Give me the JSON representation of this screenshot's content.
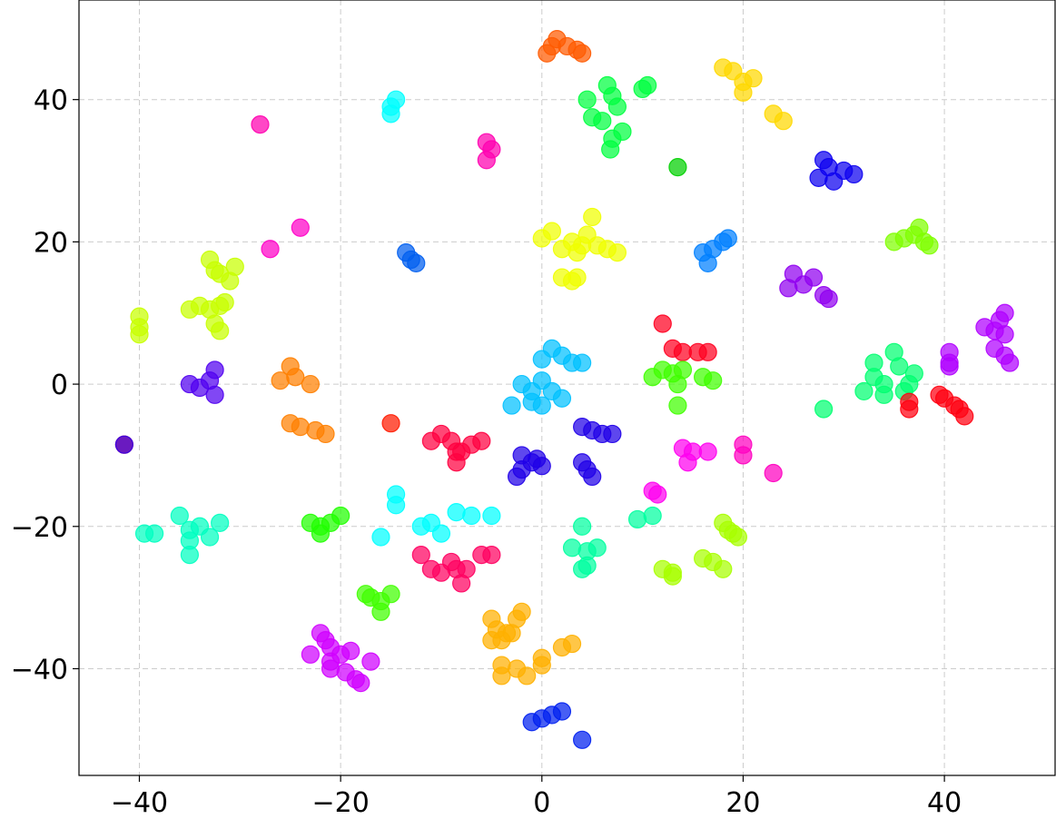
{
  "chart_data": {
    "type": "scatter",
    "title": "",
    "xlabel": "",
    "ylabel": "",
    "xlim": [
      -46,
      51
    ],
    "ylim": [
      -55,
      54
    ],
    "xticks": [
      -40,
      -20,
      0,
      20,
      40
    ],
    "yticks": [
      -40,
      -20,
      0,
      20,
      40
    ],
    "xtick_labels": [
      "−40",
      "−20",
      "0",
      "20",
      "40"
    ],
    "ytick_labels": [
      "−40",
      "−20",
      "0",
      "20",
      "40"
    ],
    "grid": true,
    "legend": "none",
    "clusters": [
      {
        "color": "#ff5a00",
        "points": [
          [
            0.5,
            46.5
          ],
          [
            1.5,
            48.5
          ],
          [
            2.5,
            47.5
          ],
          [
            3.5,
            47
          ],
          [
            4,
            46.5
          ],
          [
            1,
            47.5
          ]
        ]
      },
      {
        "color": "#ffd800",
        "points": [
          [
            18,
            44.5
          ],
          [
            19,
            44
          ],
          [
            20,
            42.5
          ],
          [
            21,
            43
          ],
          [
            20,
            41
          ],
          [
            23,
            38
          ],
          [
            24,
            37
          ]
        ]
      },
      {
        "color": "#00ff40",
        "points": [
          [
            4.5,
            40
          ],
          [
            6.5,
            42
          ],
          [
            7,
            40.5
          ],
          [
            7.5,
            39
          ],
          [
            10,
            41.5
          ],
          [
            10.5,
            42
          ],
          [
            5,
            37.5
          ],
          [
            6,
            37
          ],
          [
            7,
            34.5
          ],
          [
            8,
            35.5
          ],
          [
            6.8,
            33
          ]
        ]
      },
      {
        "color": "#00ffff",
        "points": [
          [
            -15,
            38
          ],
          [
            -14.5,
            40
          ],
          [
            -15,
            39
          ]
        ]
      },
      {
        "color": "#ff00b0",
        "points": [
          [
            -28,
            36.5
          ],
          [
            -5.5,
            34
          ],
          [
            -5,
            33
          ],
          [
            -5.5,
            31.5
          ]
        ]
      },
      {
        "color": "#00d000",
        "points": [
          [
            13.5,
            30.5
          ]
        ]
      },
      {
        "color": "#0c00f0",
        "points": [
          [
            27.5,
            29
          ],
          [
            28,
            31.5
          ],
          [
            28.5,
            30.5
          ],
          [
            29,
            28.5
          ],
          [
            30,
            30
          ],
          [
            31,
            29.5
          ]
        ]
      },
      {
        "color": "#ff00c8",
        "points": [
          [
            -27,
            19
          ],
          [
            -24,
            22
          ]
        ]
      },
      {
        "color": "#005ef0",
        "points": [
          [
            -13.5,
            18.5
          ],
          [
            -13,
            17.5
          ],
          [
            -12.5,
            17
          ]
        ]
      },
      {
        "color": "#f0ff00",
        "points": [
          [
            0,
            20.5
          ],
          [
            1,
            21.5
          ],
          [
            2,
            19
          ],
          [
            3,
            20
          ],
          [
            3.5,
            18.5
          ],
          [
            4,
            19.5
          ],
          [
            4.5,
            21
          ],
          [
            5,
            23.5
          ],
          [
            5.5,
            19.5
          ],
          [
            6.5,
            19
          ],
          [
            7.5,
            18.5
          ],
          [
            2,
            15
          ],
          [
            3,
            14.5
          ],
          [
            3.5,
            15
          ]
        ]
      },
      {
        "color": "#0080ff",
        "points": [
          [
            16,
            18.5
          ],
          [
            16.5,
            17
          ],
          [
            17,
            19
          ],
          [
            18,
            20
          ],
          [
            18.5,
            20.5
          ]
        ]
      },
      {
        "color": "#80ff00",
        "points": [
          [
            35,
            20
          ],
          [
            36,
            20.5
          ],
          [
            37,
            21
          ],
          [
            37.5,
            22
          ],
          [
            38,
            20
          ],
          [
            38.5,
            19.5
          ]
        ]
      },
      {
        "color": "#c8ff00",
        "points": [
          [
            -33,
            17.5
          ],
          [
            -32,
            15.5
          ],
          [
            -31,
            14.5
          ],
          [
            -30.5,
            16.5
          ],
          [
            -32.5,
            16
          ],
          [
            -35,
            10.5
          ],
          [
            -34,
            11
          ],
          [
            -33,
            10.5
          ],
          [
            -32,
            11
          ],
          [
            -31.5,
            11.5
          ],
          [
            -32.5,
            8.5
          ],
          [
            -32,
            7.5
          ],
          [
            -40,
            9.5
          ],
          [
            -40,
            8
          ],
          [
            -40,
            7
          ]
        ]
      },
      {
        "color": "#9000f0",
        "points": [
          [
            24.5,
            13.5
          ],
          [
            25,
            15.5
          ],
          [
            26,
            14
          ],
          [
            27,
            15
          ],
          [
            28,
            12.5
          ],
          [
            28.5,
            12
          ]
        ]
      },
      {
        "color": "#b000ff",
        "points": [
          [
            44,
            8
          ],
          [
            45,
            7.5
          ],
          [
            46,
            10
          ],
          [
            45.5,
            9
          ],
          [
            46,
            7
          ],
          [
            45,
            5
          ],
          [
            46,
            4
          ],
          [
            46.5,
            3
          ]
        ]
      },
      {
        "color": "#ff0020",
        "points": [
          [
            12,
            8.5
          ],
          [
            13,
            5
          ],
          [
            14,
            4.5
          ],
          [
            15.5,
            4.5
          ],
          [
            16.5,
            4.5
          ]
        ]
      },
      {
        "color": "#00c0ff",
        "points": [
          [
            0,
            3.5
          ],
          [
            1,
            5
          ],
          [
            2,
            4
          ],
          [
            3,
            3
          ],
          [
            4,
            3
          ],
          [
            -2,
            0
          ],
          [
            -1,
            -1
          ],
          [
            0,
            0.5
          ],
          [
            1,
            -1
          ],
          [
            2,
            -2
          ],
          [
            -3,
            -3
          ],
          [
            -1,
            -2.5
          ],
          [
            0,
            -3
          ]
        ]
      },
      {
        "color": "#ff8000",
        "points": [
          [
            -26,
            0.5
          ],
          [
            -25,
            2.5
          ],
          [
            -24.5,
            1
          ],
          [
            -23,
            0
          ],
          [
            -25,
            -5.5
          ],
          [
            -24,
            -6
          ],
          [
            -22.5,
            -6.5
          ],
          [
            -21.5,
            -7
          ]
        ]
      },
      {
        "color": "#5000f0",
        "points": [
          [
            -35,
            0
          ],
          [
            -34,
            -0.5
          ],
          [
            -33,
            0.5
          ],
          [
            -32.5,
            2
          ],
          [
            -32.5,
            -1.5
          ]
        ]
      },
      {
        "color": "#40ff00",
        "points": [
          [
            11,
            1
          ],
          [
            12,
            2
          ],
          [
            13,
            1.5
          ],
          [
            13.5,
            0
          ],
          [
            14,
            2
          ],
          [
            16,
            1
          ],
          [
            17,
            0.5
          ],
          [
            13.5,
            -3
          ]
        ]
      },
      {
        "color": "#00ff70",
        "points": [
          [
            32,
            -1
          ],
          [
            33,
            1
          ],
          [
            33,
            3
          ],
          [
            34,
            0
          ],
          [
            35,
            4.5
          ],
          [
            35.5,
            2.5
          ],
          [
            36,
            -1
          ],
          [
            36.5,
            0
          ],
          [
            37,
            1.5
          ],
          [
            34,
            -1.5
          ],
          [
            28,
            -3.5
          ]
        ]
      },
      {
        "color": "#b000ff",
        "points": [
          [
            40.5,
            4.5
          ],
          [
            40.5,
            3
          ],
          [
            40.5,
            2.5
          ]
        ]
      },
      {
        "color": "#ff0010",
        "points": [
          [
            36.5,
            -3.5
          ],
          [
            36.5,
            -2.5
          ],
          [
            39.5,
            -1.5
          ],
          [
            40,
            -2
          ],
          [
            41,
            -3
          ],
          [
            41.5,
            -3.5
          ],
          [
            42,
            -4.5
          ]
        ]
      },
      {
        "color": "#ff2000",
        "points": [
          [
            -41.5,
            -8.5
          ]
        ]
      },
      {
        "color": "#3000f0",
        "points": [
          [
            -41.5,
            -8.5
          ]
        ]
      },
      {
        "color": "#ff1a00",
        "points": [
          [
            -15,
            -5.5
          ]
        ]
      },
      {
        "color": "#ff0040",
        "points": [
          [
            -11,
            -8
          ],
          [
            -10,
            -7
          ],
          [
            -9,
            -8
          ],
          [
            -8.5,
            -9.5
          ],
          [
            -8.5,
            -11
          ],
          [
            -8,
            -9.5
          ],
          [
            -7,
            -8.5
          ],
          [
            -6,
            -8
          ]
        ]
      },
      {
        "color": "#2000e8",
        "points": [
          [
            -2,
            -10
          ],
          [
            -1,
            -11
          ],
          [
            -0.5,
            -10.5
          ],
          [
            0,
            -11.5
          ],
          [
            -2.5,
            -13
          ],
          [
            -2,
            -12
          ],
          [
            4,
            -6
          ],
          [
            5,
            -6.5
          ],
          [
            6,
            -7
          ],
          [
            7,
            -7
          ],
          [
            4,
            -11
          ],
          [
            4.5,
            -12
          ],
          [
            5,
            -13
          ]
        ]
      },
      {
        "color": "#ff00f0",
        "points": [
          [
            14,
            -9
          ],
          [
            15,
            -9.5
          ],
          [
            14.5,
            -11
          ],
          [
            16.5,
            -9.5
          ],
          [
            11,
            -15
          ],
          [
            11.5,
            -15.5
          ]
        ]
      },
      {
        "color": "#ff00c0",
        "points": [
          [
            20,
            -8.5
          ],
          [
            20,
            -10
          ],
          [
            23,
            -12.5
          ]
        ]
      },
      {
        "color": "#00ffc0",
        "points": [
          [
            -36,
            -18.5
          ],
          [
            -35,
            -20.5
          ],
          [
            -34,
            -20
          ],
          [
            -33,
            -21.5
          ],
          [
            -32,
            -19.5
          ],
          [
            -35,
            -22
          ],
          [
            -35,
            -24
          ],
          [
            -39.5,
            -21
          ],
          [
            -38.5,
            -21
          ]
        ]
      },
      {
        "color": "#20ff00",
        "points": [
          [
            -23,
            -19.5
          ],
          [
            -22,
            -20
          ],
          [
            -21,
            -19.5
          ],
          [
            -20,
            -18.5
          ],
          [
            -22,
            -21
          ]
        ]
      },
      {
        "color": "#00ffff",
        "points": [
          [
            -14.5,
            -15.5
          ],
          [
            -14.5,
            -17
          ],
          [
            -12,
            -20
          ],
          [
            -11,
            -19.5
          ],
          [
            -10,
            -21
          ],
          [
            -8.5,
            -18
          ],
          [
            -7,
            -18.5
          ],
          [
            -5,
            -18.5
          ],
          [
            -16,
            -21.5
          ]
        ]
      },
      {
        "color": "#00ffa0",
        "points": [
          [
            3,
            -23
          ],
          [
            4,
            -20
          ],
          [
            4.5,
            -23.5
          ],
          [
            5.5,
            -23
          ],
          [
            4.5,
            -25.5
          ],
          [
            4,
            -26
          ],
          [
            9.5,
            -19
          ],
          [
            11,
            -18.5
          ]
        ]
      },
      {
        "color": "#a8ff00",
        "points": [
          [
            18,
            -19.5
          ],
          [
            18.5,
            -20.5
          ],
          [
            19,
            -21
          ],
          [
            19.5,
            -21.5
          ],
          [
            12,
            -26
          ],
          [
            13,
            -26.5
          ],
          [
            13,
            -27
          ],
          [
            16,
            -24.5
          ],
          [
            17,
            -25
          ],
          [
            18,
            -26
          ]
        ]
      },
      {
        "color": "#ff0060",
        "points": [
          [
            -12,
            -24
          ],
          [
            -11,
            -26
          ],
          [
            -10,
            -26.5
          ],
          [
            -9,
            -25
          ],
          [
            -8.5,
            -26
          ],
          [
            -8,
            -28
          ],
          [
            -7.5,
            -26
          ],
          [
            -6,
            -24
          ],
          [
            -5,
            -24
          ]
        ]
      },
      {
        "color": "#40ff00",
        "points": [
          [
            -17.5,
            -29.5
          ],
          [
            -17,
            -30
          ],
          [
            -16,
            -30.5
          ],
          [
            -15,
            -29.5
          ],
          [
            -16,
            -32
          ]
        ]
      },
      {
        "color": "#ffb000",
        "points": [
          [
            -5,
            -33
          ],
          [
            -4.5,
            -34.5
          ],
          [
            -3.5,
            -35
          ],
          [
            -2.5,
            -33
          ],
          [
            -2,
            -32
          ],
          [
            -3,
            -35
          ],
          [
            -5,
            -36
          ],
          [
            -4,
            -36
          ],
          [
            -4,
            -39.5
          ],
          [
            -4,
            -41
          ],
          [
            -2.5,
            -40
          ],
          [
            -1.5,
            -41
          ],
          [
            0,
            -38.5
          ],
          [
            0,
            -39.5
          ],
          [
            2,
            -37
          ],
          [
            3,
            -36.5
          ]
        ]
      },
      {
        "color": "#d000ff",
        "points": [
          [
            -22,
            -35
          ],
          [
            -21.5,
            -36
          ],
          [
            -21,
            -37
          ],
          [
            -20,
            -38
          ],
          [
            -19,
            -37.5
          ],
          [
            -21,
            -39
          ],
          [
            -21,
            -40
          ],
          [
            -19.5,
            -40.5
          ],
          [
            -18.5,
            -41.5
          ],
          [
            -18,
            -42
          ],
          [
            -23,
            -38
          ],
          [
            -17,
            -39
          ]
        ]
      },
      {
        "color": "#0020f0",
        "points": [
          [
            -1,
            -47.5
          ],
          [
            0,
            -47
          ],
          [
            1,
            -46.5
          ],
          [
            2,
            -46
          ],
          [
            4,
            -50
          ]
        ]
      }
    ]
  }
}
